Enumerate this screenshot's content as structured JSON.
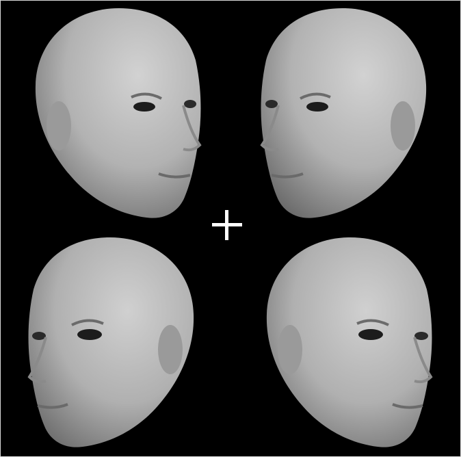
{
  "stimulus": {
    "background_color": "#000000",
    "fixation_color": "#ffffff",
    "skin_color": "#b8b8b8",
    "faces": [
      {
        "position": "top-left",
        "facing": "right",
        "visible_ear": "left"
      },
      {
        "position": "top-right",
        "facing": "left",
        "visible_ear": "right"
      },
      {
        "position": "bottom-left",
        "facing": "left",
        "visible_ear": "right"
      },
      {
        "position": "bottom-right",
        "facing": "right",
        "visible_ear": "left"
      }
    ],
    "fixation_symbol": "plus-icon"
  }
}
